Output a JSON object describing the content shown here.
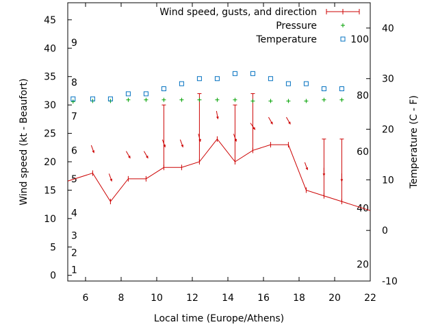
{
  "chart_data": {
    "type": "line",
    "xlabel": "Local time (Europe/Athens)",
    "ylabel": "Wind speed (kt - Beaufort)",
    "y2label": "Temperature (C - F)",
    "xlim": [
      5,
      22
    ],
    "ylim": [
      -1,
      48
    ],
    "y2lim": [
      -10,
      45
    ],
    "x_ticks": [
      "6",
      "8",
      "10",
      "12",
      "14",
      "16",
      "18",
      "20",
      "22"
    ],
    "y_ticks": [
      "0",
      "5",
      "10",
      "15",
      "20",
      "25",
      "30",
      "35",
      "40",
      "45"
    ],
    "y2_ticks": [
      "-10",
      "0",
      "10",
      "20",
      "30",
      "40"
    ],
    "beaufort_labels": [
      {
        "text": "1",
        "y": 1
      },
      {
        "text": "2",
        "y": 4
      },
      {
        "text": "3",
        "y": 7
      },
      {
        "text": "4",
        "y": 11
      },
      {
        "text": "5",
        "y": 17
      },
      {
        "text": "6",
        "y": 22
      },
      {
        "text": "7",
        "y": 28
      },
      {
        "text": "8",
        "y": 34
      },
      {
        "text": "9",
        "y": 41
      }
    ],
    "fahrenheit_labels": [
      {
        "text": "20",
        "y": -6.7
      },
      {
        "text": "40",
        "y": 4.4
      },
      {
        "text": "60",
        "y": 15.6
      },
      {
        "text": "80",
        "y": 26.7
      },
      {
        "text": "100",
        "y": 37.8
      }
    ],
    "legend": {
      "placement": "top-right",
      "entries": [
        {
          "label": "Wind speed, gusts, and direction",
          "marker": "line"
        },
        {
          "label": "Pressure",
          "marker": "plus"
        },
        {
          "label": "Temperature",
          "marker": "square"
        }
      ]
    },
    "series": [
      {
        "name": "Wind speed, gusts, and direction",
        "color": "#cc0000",
        "x": [
          4.4,
          6.4,
          7.4,
          8.4,
          9.4,
          10.4,
          11.4,
          12.4,
          13.4,
          14.4,
          15.4,
          16.4,
          17.4,
          18.4,
          19.4,
          20.4,
          22.4
        ],
        "values": [
          16,
          18,
          13,
          17,
          17,
          19,
          19,
          20,
          24,
          20,
          22,
          23,
          23,
          15,
          14,
          13,
          11
        ],
        "gusts": [
          null,
          null,
          null,
          null,
          null,
          30,
          null,
          32,
          null,
          30,
          32,
          null,
          null,
          null,
          24,
          24,
          null
        ],
        "direction_deg": [
          null,
          340,
          340,
          330,
          330,
          340,
          340,
          345,
          350,
          340,
          325,
          330,
          330,
          340,
          0,
          0,
          null
        ]
      },
      {
        "name": "Pressure",
        "color": "#00a000",
        "x": [
          5.3,
          6.4,
          7.4,
          8.4,
          9.4,
          10.4,
          11.4,
          12.4,
          13.4,
          14.4,
          15.4,
          16.4,
          17.4,
          18.4,
          19.4,
          20.4
        ],
        "values": [
          30.6,
          30.7,
          30.7,
          30.9,
          30.9,
          30.9,
          30.9,
          30.9,
          30.9,
          30.9,
          30.7,
          30.7,
          30.7,
          30.7,
          30.9,
          30.9
        ]
      },
      {
        "name": "Temperature",
        "axis": "right",
        "color": "#0070c0",
        "x": [
          5.3,
          6.4,
          7.4,
          8.4,
          9.4,
          10.4,
          11.4,
          12.4,
          13.4,
          14.4,
          15.4,
          16.4,
          17.4,
          18.4,
          19.4,
          20.4
        ],
        "values": [
          26,
          26,
          26,
          27,
          27,
          28,
          29,
          30,
          30,
          31,
          31,
          30,
          29,
          29,
          28,
          28
        ]
      }
    ]
  }
}
